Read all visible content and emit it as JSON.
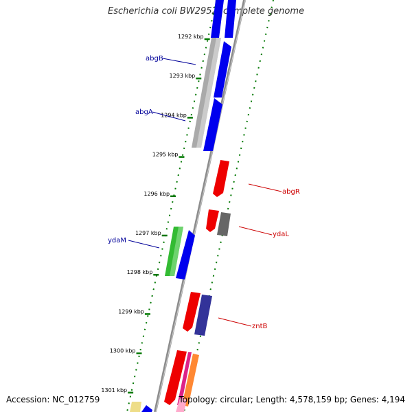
{
  "title": "Escherichia coli BW2952, complete genome",
  "footer": {
    "accession": "Accession: NC_012759",
    "topology": "Topology: circular; Length: 4,578,159 bp; Genes: 4,194"
  },
  "ticks": [
    "1292 kbp",
    "1293 kbp",
    "1294 kbp",
    "1295 kbp",
    "1296 kbp",
    "1297 kbp",
    "1298 kbp",
    "1299 kbp",
    "1300 kbp",
    "1301 kbp"
  ],
  "gene_labels": [
    {
      "name": "abgB",
      "color": "#000099",
      "side": "left"
    },
    {
      "name": "abgA",
      "color": "#000099",
      "side": "left"
    },
    {
      "name": "abgR",
      "color": "#cc0000",
      "side": "right"
    },
    {
      "name": "ydaL",
      "color": "#cc0000",
      "side": "right"
    },
    {
      "name": "ydaM",
      "color": "#000099",
      "side": "left"
    },
    {
      "name": "zntB",
      "color": "#cc0000",
      "side": "right"
    }
  ],
  "colors": {
    "backbone": "#8c8c8c",
    "tick_marks": "#007700",
    "gene_blue": "#0000ee",
    "gene_red": "#ee0000",
    "gene_gray": "#aaaaaa",
    "gene_green": "#33bb33",
    "gene_darkgray": "#666666",
    "gene_navy": "#333399"
  }
}
